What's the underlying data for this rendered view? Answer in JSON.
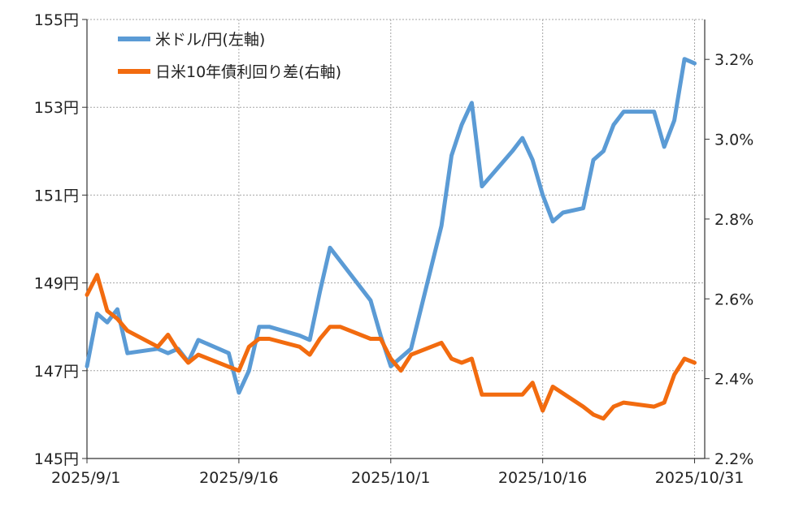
{
  "chart_data": {
    "type": "line",
    "x_ticks": [
      "2025/9/1",
      "2025/9/16",
      "2025/10/1",
      "2025/10/16",
      "2025/10/31"
    ],
    "y_left": {
      "ticks": [
        "145円",
        "147円",
        "149円",
        "151円",
        "153円",
        "155円"
      ],
      "range": [
        145,
        155
      ]
    },
    "y_right": {
      "ticks": [
        "2.2%",
        "2.4%",
        "2.6%",
        "2.8%",
        "3.0%",
        "3.2%"
      ],
      "range": [
        2.2,
        3.3
      ]
    },
    "x_range": [
      "2025-09-01",
      "2025-11-01"
    ],
    "grid": {
      "vertical": true,
      "horizontal": true
    },
    "legend_position": "top-left",
    "series": [
      {
        "name": "米ドル/円(左軸)",
        "axis": "left",
        "color": "#5b9bd5",
        "points": [
          [
            "2025-09-01",
            147.1
          ],
          [
            "2025-09-02",
            148.3
          ],
          [
            "2025-09-03",
            148.1
          ],
          [
            "2025-09-04",
            148.4
          ],
          [
            "2025-09-05",
            147.4
          ],
          [
            "2025-09-08",
            147.5
          ],
          [
            "2025-09-09",
            147.4
          ],
          [
            "2025-09-10",
            147.5
          ],
          [
            "2025-09-11",
            147.2
          ],
          [
            "2025-09-12",
            147.7
          ],
          [
            "2025-09-15",
            147.4
          ],
          [
            "2025-09-16",
            146.5
          ],
          [
            "2025-09-17",
            147.0
          ],
          [
            "2025-09-18",
            148.0
          ],
          [
            "2025-09-19",
            148.0
          ],
          [
            "2025-09-22",
            147.8
          ],
          [
            "2025-09-23",
            147.7
          ],
          [
            "2025-09-24",
            148.8
          ],
          [
            "2025-09-25",
            149.8
          ],
          [
            "2025-09-26",
            149.5
          ],
          [
            "2025-09-29",
            148.6
          ],
          [
            "2025-09-30",
            147.8
          ],
          [
            "2025-10-01",
            147.1
          ],
          [
            "2025-10-02",
            147.3
          ],
          [
            "2025-10-03",
            147.5
          ],
          [
            "2025-10-06",
            150.3
          ],
          [
            "2025-10-07",
            151.9
          ],
          [
            "2025-10-08",
            152.6
          ],
          [
            "2025-10-09",
            153.1
          ],
          [
            "2025-10-10",
            151.2
          ],
          [
            "2025-10-13",
            152.0
          ],
          [
            "2025-10-14",
            152.3
          ],
          [
            "2025-10-15",
            151.8
          ],
          [
            "2025-10-16",
            151.0
          ],
          [
            "2025-10-17",
            150.4
          ],
          [
            "2025-10-18",
            150.6
          ],
          [
            "2025-10-20",
            150.7
          ],
          [
            "2025-10-21",
            151.8
          ],
          [
            "2025-10-22",
            152.0
          ],
          [
            "2025-10-23",
            152.6
          ],
          [
            "2025-10-24",
            152.9
          ],
          [
            "2025-10-27",
            152.9
          ],
          [
            "2025-10-28",
            152.1
          ],
          [
            "2025-10-29",
            152.7
          ],
          [
            "2025-10-30",
            154.1
          ],
          [
            "2025-10-31",
            154.0
          ]
        ]
      },
      {
        "name": "日米10年債利回り差(右軸)",
        "axis": "right",
        "color": "#f26b0f",
        "points": [
          [
            "2025-09-01",
            2.61
          ],
          [
            "2025-09-02",
            2.66
          ],
          [
            "2025-09-03",
            2.57
          ],
          [
            "2025-09-04",
            2.55
          ],
          [
            "2025-09-05",
            2.52
          ],
          [
            "2025-09-08",
            2.48
          ],
          [
            "2025-09-09",
            2.51
          ],
          [
            "2025-09-10",
            2.47
          ],
          [
            "2025-09-11",
            2.44
          ],
          [
            "2025-09-12",
            2.46
          ],
          [
            "2025-09-15",
            2.43
          ],
          [
            "2025-09-16",
            2.42
          ],
          [
            "2025-09-17",
            2.48
          ],
          [
            "2025-09-18",
            2.5
          ],
          [
            "2025-09-19",
            2.5
          ],
          [
            "2025-09-22",
            2.48
          ],
          [
            "2025-09-23",
            2.46
          ],
          [
            "2025-09-24",
            2.5
          ],
          [
            "2025-09-25",
            2.53
          ],
          [
            "2025-09-26",
            2.53
          ],
          [
            "2025-09-29",
            2.5
          ],
          [
            "2025-09-30",
            2.5
          ],
          [
            "2025-10-01",
            2.45
          ],
          [
            "2025-10-02",
            2.42
          ],
          [
            "2025-10-03",
            2.46
          ],
          [
            "2025-10-06",
            2.49
          ],
          [
            "2025-10-07",
            2.45
          ],
          [
            "2025-10-08",
            2.44
          ],
          [
            "2025-10-09",
            2.45
          ],
          [
            "2025-10-10",
            2.36
          ],
          [
            "2025-10-13",
            2.36
          ],
          [
            "2025-10-14",
            2.36
          ],
          [
            "2025-10-15",
            2.39
          ],
          [
            "2025-10-16",
            2.32
          ],
          [
            "2025-10-17",
            2.38
          ],
          [
            "2025-10-20",
            2.33
          ],
          [
            "2025-10-21",
            2.31
          ],
          [
            "2025-10-22",
            2.3
          ],
          [
            "2025-10-23",
            2.33
          ],
          [
            "2025-10-24",
            2.34
          ],
          [
            "2025-10-27",
            2.33
          ],
          [
            "2025-10-28",
            2.34
          ],
          [
            "2025-10-29",
            2.41
          ],
          [
            "2025-10-30",
            2.45
          ],
          [
            "2025-10-31",
            2.44
          ]
        ]
      }
    ]
  }
}
